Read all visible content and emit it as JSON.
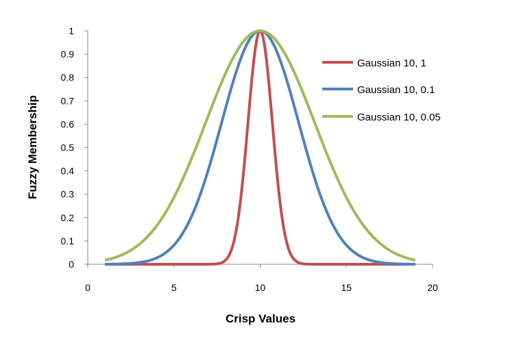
{
  "chart_data": {
    "type": "line",
    "xlabel": "Crisp Values",
    "ylabel": "Fuzzy Membership",
    "xlim": [
      0,
      20
    ],
    "ylim": [
      0,
      1
    ],
    "x_ticks": [
      0,
      5,
      10,
      15,
      20
    ],
    "y_ticks": [
      0,
      0.1,
      0.2,
      0.3,
      0.4,
      0.5,
      0.6,
      0.7,
      0.8,
      0.9,
      1
    ],
    "grid": false,
    "legend_position": "right",
    "x_range_plotted": [
      1,
      19
    ],
    "series": [
      {
        "name": "Gaussian 10, 1",
        "color": "#c0504d",
        "center": 10,
        "width_param": 1,
        "x": [
          1,
          6,
          7,
          7.5,
          8,
          8.5,
          9,
          9.5,
          10,
          10.5,
          11,
          11.5,
          12,
          12.5,
          13,
          14,
          19
        ],
        "y": [
          0,
          0.0,
          0.0,
          0.002,
          0.018,
          0.105,
          0.368,
          0.779,
          1.0,
          0.779,
          0.368,
          0.105,
          0.018,
          0.002,
          0.0,
          0.0,
          0
        ]
      },
      {
        "name": "Gaussian 10, 0.1",
        "color": "#4f81bd",
        "center": 10,
        "width_param": 0.1,
        "x": [
          1,
          2,
          3,
          4,
          5,
          6,
          7,
          8,
          9,
          10,
          11,
          12,
          13,
          14,
          15,
          16,
          17,
          18,
          19
        ],
        "y": [
          0.0003,
          0.0017,
          0.0074,
          0.027,
          0.082,
          0.202,
          0.407,
          0.67,
          0.905,
          1.0,
          0.905,
          0.67,
          0.407,
          0.202,
          0.082,
          0.027,
          0.0074,
          0.0017,
          0.0003
        ]
      },
      {
        "name": "Gaussian 10, 0.05",
        "color": "#9bbb59",
        "center": 10,
        "width_param": 0.05,
        "x": [
          1,
          2,
          3,
          4,
          5,
          6,
          7,
          8,
          9,
          10,
          11,
          12,
          13,
          14,
          15,
          16,
          17,
          18,
          19
        ],
        "y": [
          0.017,
          0.041,
          0.086,
          0.165,
          0.287,
          0.449,
          0.638,
          0.819,
          0.951,
          1.0,
          0.951,
          0.819,
          0.638,
          0.449,
          0.287,
          0.165,
          0.086,
          0.041,
          0.017
        ]
      }
    ]
  }
}
